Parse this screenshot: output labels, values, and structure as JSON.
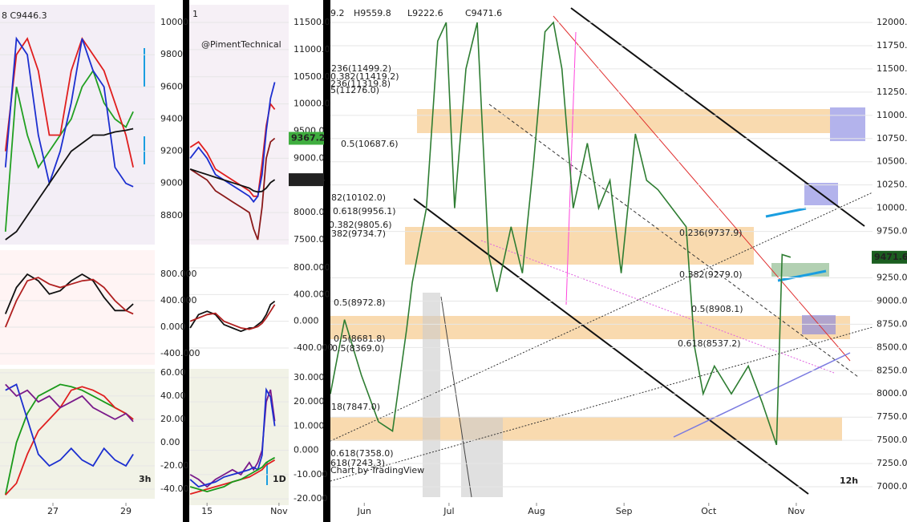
{
  "chart_data": [
    {
      "type": "line",
      "annotations": [
        "8 C9446.3"
      ],
      "xlim": [
        25.55,
        29.79
      ],
      "ylim": [
        8620,
        10110
      ],
      "yticks": [
        10000,
        9800,
        9600,
        9400,
        9200,
        9000,
        8800
      ],
      "x": [
        25.7,
        26.0,
        26.3,
        26.6,
        26.9,
        27.2,
        27.5,
        27.8,
        28.1,
        28.4,
        28.7,
        29.0,
        29.2
      ],
      "series": [
        {
          "color": "#22a022",
          "values": [
            8700,
            9600,
            9300,
            9100,
            9200,
            9300,
            9400,
            9600,
            9700,
            9500,
            9400,
            9350,
            9446.3
          ]
        },
        {
          "color": "#e01e1e",
          "values": [
            9200,
            9800,
            9900,
            9700,
            9300,
            9300,
            9700,
            9900,
            9800,
            9700,
            9500,
            9300,
            9100
          ]
        },
        {
          "color": "#1c2fd0",
          "values": [
            9100,
            9900,
            9800,
            9300,
            9000,
            9200,
            9500,
            9900,
            9700,
            9600,
            9100,
            9000,
            8980
          ]
        },
        {
          "color": "#111111",
          "values": [
            8650,
            8700,
            8800,
            8900,
            9000,
            9100,
            9200,
            9250,
            9300,
            9300,
            9320,
            9330,
            9340
          ]
        }
      ]
    },
    {
      "type": "line",
      "annotations": [],
      "xlim": [
        25.55,
        29.79
      ],
      "ylim": [
        -570,
        1163
      ],
      "yticks": [
        {
          "value": 800,
          "label": "800.000"
        },
        {
          "value": 400,
          "label": "400.000"
        },
        {
          "value": 0,
          "label": "0.000"
        },
        {
          "value": -400,
          "label": "-400.000"
        }
      ],
      "x": [
        25.7,
        26.0,
        26.3,
        26.6,
        26.9,
        27.2,
        27.5,
        27.8,
        28.1,
        28.4,
        28.7,
        29.0,
        29.2
      ],
      "series": [
        {
          "color": "#111111",
          "values": [
            200,
            600,
            800,
            700,
            500,
            550,
            700,
            800,
            700,
            450,
            250,
            250,
            350
          ]
        },
        {
          "color": "#b02020",
          "values": [
            0,
            400,
            700,
            750,
            650,
            600,
            650,
            700,
            720,
            600,
            400,
            250,
            200
          ]
        }
      ]
    },
    {
      "type": "line",
      "annotations": [
        "3h"
      ],
      "xlim": [
        25.55,
        29.79
      ],
      "ylim": [
        -48.3,
        63.4
      ],
      "xticks": [
        27,
        29
      ],
      "yticks": [
        {
          "value": 60,
          "label": "60.00"
        },
        {
          "value": 40,
          "label": "40.00"
        },
        {
          "value": 20,
          "label": "20.00"
        },
        {
          "value": 0,
          "label": "0.00"
        },
        {
          "value": -20,
          "label": "-20.00"
        },
        {
          "value": -40,
          "label": "-40.00"
        }
      ],
      "x": [
        25.7,
        26.0,
        26.3,
        26.6,
        26.9,
        27.2,
        27.5,
        27.8,
        28.1,
        28.4,
        28.7,
        29.0,
        29.2
      ],
      "series": [
        {
          "color": "#1a9a1a",
          "values": [
            -45,
            0,
            25,
            40,
            45,
            50,
            48,
            45,
            40,
            35,
            30,
            25,
            20
          ]
        },
        {
          "color": "#e02020",
          "values": [
            -45,
            -35,
            -10,
            10,
            20,
            30,
            45,
            48,
            45,
            40,
            30,
            25,
            20
          ]
        },
        {
          "color": "#1c2fd0",
          "values": [
            45,
            50,
            20,
            -10,
            -20,
            -15,
            -5,
            -15,
            -20,
            -5,
            -15,
            -20,
            -10
          ]
        },
        {
          "color": "#7a1a8a",
          "values": [
            50,
            40,
            45,
            35,
            40,
            30,
            35,
            40,
            30,
            25,
            20,
            25,
            18
          ]
        }
      ]
    },
    {
      "type": "line",
      "annotations": [
        "1",
        "@PimentTechnical"
      ],
      "xlim": [
        10.8,
        34.3
      ],
      "ylim": [
        7411,
        11825
      ],
      "yticks": [
        {
          "value": 11500,
          "label": "11500.0"
        },
        {
          "value": 11000,
          "label": "11000.0"
        },
        {
          "value": 10500,
          "label": "10500.0"
        },
        {
          "value": 10000,
          "label": "10000.0"
        },
        {
          "value": 9500,
          "label": "9500.0"
        },
        {
          "value": 9000,
          "label": "9000.0"
        },
        {
          "value": 8000,
          "label": "8000.0"
        },
        {
          "value": 7500,
          "label": "7500.0"
        }
      ],
      "price_tags": [
        {
          "value": 9367.2,
          "color": "#3fae3f"
        },
        {
          "value": 8605.4,
          "color": "#222222"
        }
      ],
      "x": [
        11,
        13,
        15,
        17,
        19,
        21,
        23,
        25,
        26,
        27,
        28,
        29,
        30,
        31
      ],
      "series": [
        {
          "color": "#8b1a1a",
          "values": [
            8800,
            8700,
            8600,
            8400,
            8300,
            8200,
            8100,
            8000,
            7700,
            7500,
            8100,
            9000,
            9300,
            9367.2
          ]
        },
        {
          "color": "#e01e1e",
          "values": [
            9200,
            9300,
            9100,
            8800,
            8700,
            8600,
            8500,
            8400,
            8300,
            8300,
            8900,
            9600,
            10000,
            9900
          ]
        },
        {
          "color": "#1c2fd0",
          "values": [
            9000,
            9200,
            9000,
            8700,
            8600,
            8500,
            8400,
            8300,
            8200,
            8300,
            8700,
            9500,
            10100,
            10400
          ]
        },
        {
          "color": "#111111",
          "values": [
            8800,
            8750,
            8700,
            8650,
            8600,
            8550,
            8500,
            8450,
            8400,
            8380,
            8390,
            8450,
            8550,
            8605.4
          ]
        }
      ]
    },
    {
      "type": "line",
      "annotations": [],
      "xlim": [
        10.8,
        34.3
      ],
      "ylim": [
        -652,
        1064
      ],
      "yticks": [
        {
          "value": 800,
          "label": "800.000"
        },
        {
          "value": 400,
          "label": "400.000"
        },
        {
          "value": 0,
          "label": "0.000"
        },
        {
          "value": -400,
          "label": "-400.000"
        }
      ],
      "x": [
        11,
        13,
        15,
        17,
        19,
        21,
        23,
        25,
        26,
        27,
        28,
        29,
        30,
        31
      ],
      "series": [
        {
          "color": "#111111",
          "values": [
            -100,
            100,
            150,
            100,
            -50,
            -100,
            -150,
            -100,
            -100,
            -50,
            0,
            100,
            250,
            300
          ]
        },
        {
          "color": "#b02020",
          "values": [
            0,
            50,
            100,
            120,
            0,
            -50,
            -100,
            -120,
            -100,
            -80,
            -30,
            50,
            150,
            250
          ]
        }
      ]
    },
    {
      "type": "line",
      "annotations": [
        "1D"
      ],
      "xlim": [
        10.8,
        34.3
      ],
      "ylim": [
        -22.6,
        33.6
      ],
      "xticks": [
        15,
        {
          "value": 32,
          "label": "Nov"
        }
      ],
      "yticks": [
        {
          "value": 30,
          "label": "30.000"
        },
        {
          "value": 20,
          "label": "20.000"
        },
        {
          "value": 10,
          "label": "10.000"
        },
        {
          "value": 0,
          "label": "0.000"
        },
        {
          "value": -10,
          "label": "-10.000"
        },
        {
          "value": -20,
          "label": "-20.000"
        }
      ],
      "x": [
        11,
        13,
        15,
        17,
        19,
        21,
        23,
        25,
        26,
        27,
        28,
        29,
        30,
        31
      ],
      "series": [
        {
          "color": "#7a1a8a",
          "values": [
            -10,
            -12,
            -15,
            -12,
            -10,
            -8,
            -10,
            -5,
            -8,
            -5,
            0,
            20,
            25,
            12
          ]
        },
        {
          "color": "#1c2fd0",
          "values": [
            -12,
            -15,
            -14,
            -13,
            -11,
            -10,
            -9,
            -8,
            -7,
            -8,
            -2,
            25,
            22,
            10
          ]
        },
        {
          "color": "#e02020",
          "values": [
            -18,
            -17,
            -16,
            -15,
            -14,
            -13,
            -12,
            -11,
            -10,
            -9,
            -8,
            -6,
            -5,
            -4
          ]
        },
        {
          "color": "#1a9a1a",
          "values": [
            -15,
            -16,
            -17,
            -16,
            -15,
            -13,
            -12,
            -10,
            -9,
            -8,
            -7,
            -5,
            -4,
            -3
          ]
        }
      ]
    },
    {
      "type": "line",
      "annotations": [
        "9.2",
        "H9559.8",
        "L9222.6",
        "C9471.6",
        "236(11499.2)",
        "0.382(11419.2)",
        "236(11319.8)",
        "5(11276.0)",
        "0.5(10687.6)",
        "82(10102.0)",
        "0.618(9956.1)",
        "0.382(9805.6)",
        "382(9734.7)",
        "0.236(9737.9)",
        "0.382(9279.0)",
        "0.5(8972.8)",
        "0.5(8908.1)",
        "0.5(8681.8)",
        "0.5(8369.0)",
        "0.618(8537.2)",
        "18(7847.0)",
        "0.618(7358.0)",
        "618(7243.3)",
        "Chart by TradingView",
        "12h"
      ],
      "xlim": [
        140,
        332
      ],
      "ylim": [
        6845,
        12242
      ],
      "xticks": [
        {
          "value": 152,
          "label": "Jun"
        },
        {
          "value": 182,
          "label": "Jul"
        },
        {
          "value": 213,
          "label": "Aug"
        },
        {
          "value": 244,
          "label": "Sep"
        },
        {
          "value": 274,
          "label": "Oct"
        },
        {
          "value": 305,
          "label": "Nov"
        }
      ],
      "yticks": [
        {
          "value": 12000,
          "label": "12000.0"
        },
        {
          "value": 11750,
          "label": "11750.0"
        },
        {
          "value": 11500,
          "label": "11500.0"
        },
        {
          "value": 11250,
          "label": "11250.0"
        },
        {
          "value": 11000,
          "label": "11000.0"
        },
        {
          "value": 10750,
          "label": "10750.0"
        },
        {
          "value": 10500,
          "label": "10500.0"
        },
        {
          "value": 10250,
          "label": "10250.0"
        },
        {
          "value": 10000,
          "label": "10000.0"
        },
        {
          "value": 9750,
          "label": "9750.0"
        },
        {
          "value": 9250,
          "label": "9250.0"
        },
        {
          "value": 9000,
          "label": "9000.0"
        },
        {
          "value": 8750,
          "label": "8750.0"
        },
        {
          "value": 8500,
          "label": "8500.0"
        },
        {
          "value": 8250,
          "label": "8250.0"
        },
        {
          "value": 8000,
          "label": "8000.0"
        },
        {
          "value": 7750,
          "label": "7750.0"
        },
        {
          "value": 7500,
          "label": "7500.0"
        },
        {
          "value": 7250,
          "label": "7250.0"
        },
        {
          "value": 7000,
          "label": "7000.0"
        }
      ],
      "price_tags": [
        {
          "value": 9471.6,
          "color": "#1b5e20"
        }
      ],
      "x": [
        140,
        145,
        151,
        157,
        162,
        167,
        169,
        174,
        178,
        181,
        184,
        188,
        192,
        196,
        199,
        204,
        208,
        212,
        216,
        219,
        222,
        226,
        231,
        235,
        239,
        243,
        248,
        252,
        256,
        261,
        266,
        269,
        272,
        276,
        282,
        288,
        293,
        298,
        300,
        303
      ],
      "series": [
        {
          "color": "#2e7d32",
          "values": [
            8000,
            8800,
            8200,
            7700,
            7600,
            8700,
            9200,
            10000,
            11800,
            12000,
            10000,
            11500,
            12000,
            9500,
            9100,
            9800,
            9300,
            10500,
            11900,
            12000,
            11500,
            10000,
            10700,
            10000,
            10300,
            9300,
            10800,
            10300,
            10200,
            10000,
            9800,
            8500,
            8000,
            8300,
            8000,
            8300,
            7900,
            7450,
            9500,
            9471.6
          ]
        }
      ]
    }
  ]
}
